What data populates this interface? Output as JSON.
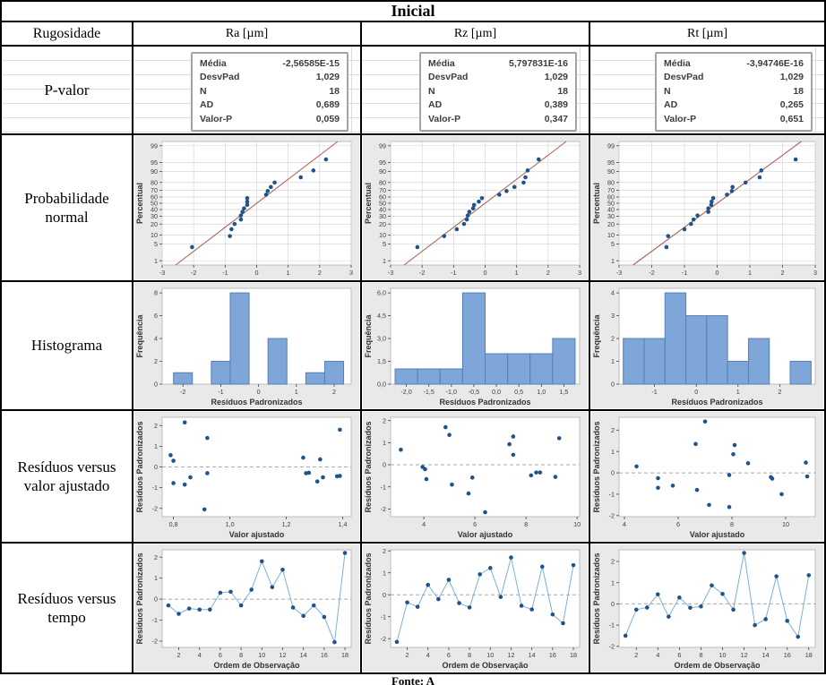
{
  "title": "Inicial",
  "header": {
    "row_label": "Rugosidade",
    "columns": [
      "Ra [µm]",
      "Rz [µm]",
      "Rt [µm]"
    ]
  },
  "rows": {
    "pvalor": {
      "label": "P-valor"
    },
    "prob": {
      "label": "Probabilidade normal"
    },
    "hist": {
      "label": "Histograma"
    },
    "fitted": {
      "label": "Resíduos versus valor ajustado"
    },
    "tempo": {
      "label": "Resíduos versus tempo"
    }
  },
  "footer": "Fonte: A",
  "colors": {
    "panel_bg": "#e9e9e9",
    "plot_bg": "#ffffff",
    "plot_frame": "#bdbdbd",
    "grid": "#d7d7d7",
    "point": "#1f538c",
    "hist_fill": "#7ea6d8",
    "hist_stroke": "#5580b4",
    "fit_line": "#b0605a",
    "ref_line": "#a8a8a8",
    "connect_line": "#7cb0d8",
    "axis_text": "#3f3f3f",
    "table_border": "#000000",
    "excel_grid": "#dcdcdc"
  },
  "stats": [
    {
      "column": "Ra",
      "items": [
        {
          "label": "Média",
          "value": "-2,56585E-15"
        },
        {
          "label": "DesvPad",
          "value": "1,029"
        },
        {
          "label": "N",
          "value": "18"
        },
        {
          "label": "AD",
          "value": "0,689"
        },
        {
          "label": "Valor-P",
          "value": "0,059"
        }
      ]
    },
    {
      "column": "Rz",
      "items": [
        {
          "label": "Média",
          "value": "5,797831E-16"
        },
        {
          "label": "DesvPad",
          "value": "1,029"
        },
        {
          "label": "N",
          "value": "18"
        },
        {
          "label": "AD",
          "value": "0,389"
        },
        {
          "label": "Valor-P",
          "value": "0,347"
        }
      ]
    },
    {
      "column": "Rt",
      "items": [
        {
          "label": "Média",
          "value": "-3,94746E-16"
        },
        {
          "label": "DesvPad",
          "value": "1,029"
        },
        {
          "label": "N",
          "value": "18"
        },
        {
          "label": "AD",
          "value": "0,265"
        },
        {
          "label": "Valor-P",
          "value": "0,651"
        }
      ]
    }
  ],
  "chart_data": [
    {
      "name": "normal-probability-ra",
      "type": "probplot",
      "column": "Ra",
      "ylabel": "Percentual",
      "xlim": [
        -3,
        3
      ],
      "xticks": [
        -3,
        -2,
        -1,
        0,
        1,
        2,
        3
      ],
      "xtlabels": [
        "-3",
        "-2",
        "-1",
        "0",
        "1",
        "2",
        "3"
      ],
      "pticks": [
        1,
        5,
        10,
        20,
        30,
        40,
        50,
        60,
        70,
        80,
        90,
        95,
        99
      ],
      "fit": {
        "mean": 0,
        "sd": 1.029
      },
      "points": [
        [
          -2.05,
          3.8
        ],
        [
          -0.85,
          9.2
        ],
        [
          -0.8,
          14.7
        ],
        [
          -0.7,
          20.1
        ],
        [
          -0.5,
          25.5
        ],
        [
          -0.5,
          31
        ],
        [
          -0.45,
          36.4
        ],
        [
          -0.4,
          41.8
        ],
        [
          -0.3,
          47.3
        ],
        [
          -0.3,
          52.7
        ],
        [
          -0.3,
          58.2
        ],
        [
          0.3,
          63.6
        ],
        [
          0.35,
          69
        ],
        [
          0.45,
          74.5
        ],
        [
          0.57,
          79.9
        ],
        [
          1.4,
          85.3
        ],
        [
          1.8,
          90.8
        ],
        [
          2.2,
          96.2
        ]
      ]
    },
    {
      "name": "normal-probability-rz",
      "type": "probplot",
      "column": "Rz",
      "ylabel": "Percentual",
      "xlim": [
        -3,
        3
      ],
      "xticks": [
        -3,
        -2,
        -1,
        0,
        1,
        2,
        3
      ],
      "xtlabels": [
        "-3",
        "-2",
        "-1",
        "0",
        "1",
        "2",
        "3"
      ],
      "pticks": [
        1,
        5,
        10,
        20,
        30,
        40,
        50,
        60,
        70,
        80,
        90,
        95,
        99
      ],
      "fit": {
        "mean": 0,
        "sd": 1.029
      },
      "points": [
        [
          -2.15,
          3.8
        ],
        [
          -1.3,
          9.2
        ],
        [
          -0.9,
          14.7
        ],
        [
          -0.67,
          20.1
        ],
        [
          -0.58,
          25.5
        ],
        [
          -0.55,
          31
        ],
        [
          -0.5,
          36.4
        ],
        [
          -0.38,
          41.8
        ],
        [
          -0.35,
          47.3
        ],
        [
          -0.2,
          52.7
        ],
        [
          -0.1,
          58.2
        ],
        [
          0.45,
          63.6
        ],
        [
          0.68,
          69
        ],
        [
          0.93,
          74.5
        ],
        [
          1.22,
          79.9
        ],
        [
          1.28,
          85.3
        ],
        [
          1.35,
          90.8
        ],
        [
          1.7,
          96.2
        ]
      ]
    },
    {
      "name": "normal-probability-rt",
      "type": "probplot",
      "column": "Rt",
      "ylabel": "Percentual",
      "xlim": [
        -3,
        3
      ],
      "xticks": [
        -3,
        -2,
        -1,
        0,
        1,
        2,
        3
      ],
      "xtlabels": [
        "-3",
        "-2",
        "-1",
        "0",
        "1",
        "2",
        "3"
      ],
      "pticks": [
        1,
        5,
        10,
        20,
        30,
        40,
        50,
        60,
        70,
        80,
        90,
        95,
        99
      ],
      "fit": {
        "mean": 0,
        "sd": 1.029
      },
      "points": [
        [
          -1.55,
          3.8
        ],
        [
          -1.5,
          9.2
        ],
        [
          -1.0,
          14.7
        ],
        [
          -0.8,
          20.1
        ],
        [
          -0.72,
          25.5
        ],
        [
          -0.6,
          31
        ],
        [
          -0.27,
          36.4
        ],
        [
          -0.27,
          41.8
        ],
        [
          -0.18,
          47.3
        ],
        [
          -0.17,
          52.7
        ],
        [
          -0.12,
          58.2
        ],
        [
          0.3,
          63.6
        ],
        [
          0.45,
          69
        ],
        [
          0.47,
          74.5
        ],
        [
          0.87,
          79.9
        ],
        [
          1.3,
          85.3
        ],
        [
          1.35,
          90.8
        ],
        [
          2.4,
          96.2
        ]
      ]
    },
    {
      "name": "histogram-ra",
      "type": "histogram",
      "column": "Ra",
      "xlabel": "Resíduos Padronizados",
      "ylabel": "Frequência",
      "xlim": [
        -2.55,
        2.45
      ],
      "xticks": [
        -2,
        -1,
        0,
        1,
        2
      ],
      "xtlabels": [
        "-2",
        "-1",
        "0",
        "1",
        "2"
      ],
      "ylim": [
        0,
        8.4
      ],
      "yticks": [
        0,
        2,
        4,
        6,
        8
      ],
      "ytlabels": [
        "0",
        "2",
        "4",
        "6",
        "8"
      ],
      "binwidth": 0.5,
      "bars": [
        [
          -2,
          1
        ],
        [
          -1,
          2
        ],
        [
          -0.5,
          8
        ],
        [
          0.5,
          4
        ],
        [
          1.5,
          1
        ],
        [
          2,
          2
        ]
      ]
    },
    {
      "name": "histogram-rz",
      "type": "histogram",
      "column": "Rz",
      "xlabel": "Resíduos Padronizados",
      "ylabel": "Frequência",
      "xlim": [
        -2.35,
        1.85
      ],
      "xticks": [
        -2,
        -1.5,
        -1,
        -0.5,
        0,
        0.5,
        1,
        1.5
      ],
      "xtlabels": [
        "-2,0",
        "-1,5",
        "-1,0",
        "-0,5",
        "0,0",
        "0,5",
        "1,0",
        "1,5"
      ],
      "ylim": [
        0,
        6.3
      ],
      "yticks": [
        0,
        1.5,
        3,
        4.5,
        6
      ],
      "ytlabels": [
        "0,0",
        "1,5",
        "3,0",
        "4,5",
        "6,0"
      ],
      "binwidth": 0.5,
      "bars": [
        [
          -2,
          1
        ],
        [
          -1.5,
          1
        ],
        [
          -1,
          1
        ],
        [
          -0.5,
          6
        ],
        [
          0,
          2
        ],
        [
          0.5,
          2
        ],
        [
          1,
          2
        ],
        [
          1.5,
          3
        ]
      ]
    },
    {
      "name": "histogram-rt",
      "type": "histogram",
      "column": "Rt",
      "xlabel": "Resíduos Padronizados",
      "ylabel": "Frequência",
      "xlim": [
        -1.85,
        2.85
      ],
      "xticks": [
        -1,
        0,
        1,
        2
      ],
      "xtlabels": [
        "-1",
        "0",
        "1",
        "2"
      ],
      "ylim": [
        0,
        4.2
      ],
      "yticks": [
        0,
        1,
        2,
        3,
        4
      ],
      "ytlabels": [
        "0",
        "1",
        "2",
        "3",
        "4"
      ],
      "binwidth": 0.5,
      "bars": [
        [
          -1.5,
          2
        ],
        [
          -1,
          2
        ],
        [
          -0.5,
          4
        ],
        [
          0,
          3
        ],
        [
          0.5,
          3
        ],
        [
          1,
          1
        ],
        [
          1.5,
          2
        ],
        [
          2.5,
          1
        ]
      ]
    },
    {
      "name": "residuals-vs-fitted-ra",
      "type": "scatter",
      "column": "Ra",
      "xlabel": "Valor ajustado",
      "ylabel": "Resíduos Padronizados",
      "xlim": [
        0.76,
        1.43
      ],
      "xticks": [
        0.8,
        1.0,
        1.2,
        1.4
      ],
      "xtlabels": [
        "0,8",
        "1,0",
        "1,2",
        "1,4"
      ],
      "ylim": [
        -2.4,
        2.4
      ],
      "yticks": [
        -2,
        -1,
        0,
        1,
        2
      ],
      "ytlabels": [
        "-2",
        "-1",
        "0",
        "1",
        "2"
      ],
      "zero_line": true,
      "points": [
        [
          0.79,
          0.57
        ],
        [
          0.8,
          0.3
        ],
        [
          0.8,
          -0.78
        ],
        [
          0.84,
          2.15
        ],
        [
          0.84,
          -0.85
        ],
        [
          0.86,
          -0.5
        ],
        [
          0.92,
          1.4
        ],
        [
          0.92,
          -0.3
        ],
        [
          0.91,
          -2.05
        ],
        [
          1.26,
          0.45
        ],
        [
          1.27,
          -0.3
        ],
        [
          1.28,
          -0.28
        ],
        [
          1.31,
          -0.7
        ],
        [
          1.32,
          0.37
        ],
        [
          1.33,
          -0.5
        ],
        [
          1.38,
          -0.45
        ],
        [
          1.39,
          -0.43
        ],
        [
          1.39,
          1.8
        ]
      ]
    },
    {
      "name": "residuals-vs-fitted-rz",
      "type": "scatter",
      "column": "Rz",
      "xlabel": "Valor ajustado",
      "ylabel": "Resíduos Padronizados",
      "xlim": [
        2.7,
        10.1
      ],
      "xticks": [
        4,
        6,
        8,
        10
      ],
      "xtlabels": [
        "4",
        "6",
        "8",
        "10"
      ],
      "ylim": [
        -2.35,
        2.15
      ],
      "yticks": [
        -2,
        -1,
        0,
        1,
        2
      ],
      "ytlabels": [
        "-2",
        "-1",
        "0",
        "1",
        "2"
      ],
      "zero_line": true,
      "points": [
        [
          3.1,
          0.68
        ],
        [
          3.95,
          -0.1
        ],
        [
          4.05,
          -0.2
        ],
        [
          4.1,
          -0.65
        ],
        [
          4.85,
          1.7
        ],
        [
          5.0,
          1.35
        ],
        [
          5.1,
          -0.9
        ],
        [
          5.75,
          -1.3
        ],
        [
          5.9,
          -0.58
        ],
        [
          6.4,
          -2.15
        ],
        [
          7.35,
          0.93
        ],
        [
          7.5,
          1.28
        ],
        [
          7.5,
          0.45
        ],
        [
          8.2,
          -0.48
        ],
        [
          8.4,
          -0.35
        ],
        [
          8.55,
          -0.35
        ],
        [
          9.15,
          -0.55
        ],
        [
          9.3,
          1.2
        ]
      ]
    },
    {
      "name": "residuals-vs-fitted-rt",
      "type": "scatter",
      "column": "Rt",
      "xlabel": "Valor ajustado",
      "ylabel": "Resíduos Padronizados",
      "xlim": [
        3.8,
        11.1
      ],
      "xticks": [
        4,
        6,
        8,
        10
      ],
      "xtlabels": [
        "4",
        "6",
        "8",
        "10"
      ],
      "ylim": [
        -2.05,
        2.6
      ],
      "yticks": [
        -2,
        -1,
        0,
        1,
        2
      ],
      "ytlabels": [
        "-2",
        "-1",
        "0",
        "1",
        "2"
      ],
      "zero_line": true,
      "points": [
        [
          4.45,
          0.3
        ],
        [
          5.25,
          -0.25
        ],
        [
          5.25,
          -0.7
        ],
        [
          5.8,
          -0.6
        ],
        [
          6.65,
          1.35
        ],
        [
          6.7,
          -0.8
        ],
        [
          7.0,
          2.4
        ],
        [
          7.15,
          -1.5
        ],
        [
          7.9,
          -0.1
        ],
        [
          7.9,
          -1.6
        ],
        [
          8.05,
          0.87
        ],
        [
          8.1,
          1.3
        ],
        [
          8.6,
          0.45
        ],
        [
          9.45,
          -0.2
        ],
        [
          9.5,
          -0.27
        ],
        [
          9.85,
          -1.0
        ],
        [
          10.75,
          0.48
        ],
        [
          10.8,
          -0.17
        ]
      ]
    },
    {
      "name": "residuals-vs-order-ra",
      "type": "line",
      "column": "Ra",
      "xlabel": "Ordem de Observação",
      "ylabel": "Resíduos Padronizados",
      "xlim": [
        0.4,
        18.6
      ],
      "xticks": [
        2,
        4,
        6,
        8,
        10,
        12,
        14,
        16,
        18
      ],
      "xtlabels": [
        "2",
        "4",
        "6",
        "8",
        "10",
        "12",
        "14",
        "16",
        "18"
      ],
      "ylim": [
        -2.3,
        2.35
      ],
      "yticks": [
        -2,
        -1,
        0,
        1,
        2
      ],
      "ytlabels": [
        "-2",
        "-1",
        "0",
        "1",
        "2"
      ],
      "zero_line": true,
      "values": [
        -0.3,
        -0.7,
        -0.45,
        -0.5,
        -0.5,
        0.3,
        0.35,
        -0.3,
        0.45,
        1.8,
        0.57,
        1.4,
        -0.4,
        -0.8,
        -0.3,
        -0.85,
        -2.05,
        2.2
      ]
    },
    {
      "name": "residuals-vs-order-rz",
      "type": "line",
      "column": "Rz",
      "xlabel": "Ordem de Observação",
      "ylabel": "Resíduos Padronizados",
      "xlim": [
        0.4,
        18.6
      ],
      "xticks": [
        2,
        4,
        6,
        8,
        10,
        12,
        14,
        16,
        18
      ],
      "xtlabels": [
        "2",
        "4",
        "6",
        "8",
        "10",
        "12",
        "14",
        "16",
        "18"
      ],
      "ylim": [
        -2.4,
        2.05
      ],
      "yticks": [
        -2,
        -1,
        0,
        1,
        2
      ],
      "ytlabels": [
        "-2",
        "-1",
        "0",
        "1",
        "2"
      ],
      "zero_line": true,
      "values": [
        -2.15,
        -0.35,
        -0.55,
        0.45,
        -0.2,
        0.68,
        -0.38,
        -0.58,
        0.93,
        1.22,
        -0.1,
        1.7,
        -0.5,
        -0.67,
        1.28,
        -0.9,
        -1.3,
        1.35
      ]
    },
    {
      "name": "residuals-vs-order-rt",
      "type": "line",
      "column": "Rt",
      "xlabel": "Ordem de Observação",
      "ylabel": "Resíduos Padronizados",
      "xlim": [
        0.4,
        18.6
      ],
      "xticks": [
        2,
        4,
        6,
        8,
        10,
        12,
        14,
        16,
        18
      ],
      "xtlabels": [
        "2",
        "4",
        "6",
        "8",
        "10",
        "12",
        "14",
        "16",
        "18"
      ],
      "ylim": [
        -2.05,
        2.55
      ],
      "yticks": [
        -2,
        -1,
        0,
        1,
        2
      ],
      "ytlabels": [
        "-2",
        "-1",
        "0",
        "1",
        "2"
      ],
      "zero_line": true,
      "values": [
        -1.5,
        -0.27,
        -0.17,
        0.45,
        -0.6,
        0.3,
        -0.18,
        -0.12,
        0.87,
        0.47,
        -0.27,
        2.4,
        -1.0,
        -0.72,
        1.3,
        -0.8,
        -1.55,
        1.35
      ]
    }
  ]
}
